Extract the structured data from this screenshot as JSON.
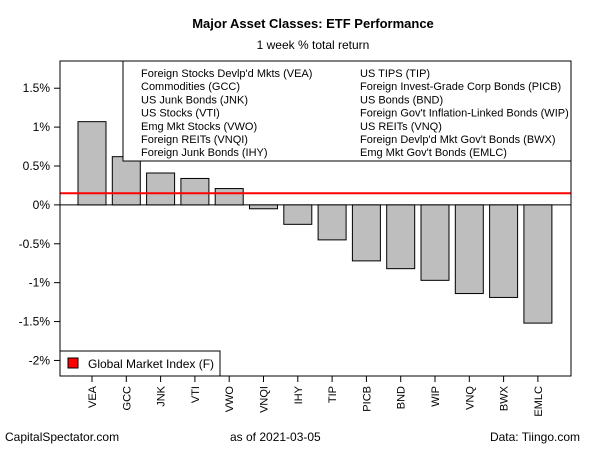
{
  "chart_data": {
    "type": "bar",
    "title": "Major Asset Classes: ETF Performance",
    "subtitle": "1 week % total return",
    "categories": [
      "VEA",
      "GCC",
      "JNK",
      "VTI",
      "VWO",
      "VNQI",
      "IHY",
      "TIP",
      "PICB",
      "BND",
      "WIP",
      "VNQ",
      "BWX",
      "EMLC"
    ],
    "values": [
      1.07,
      0.62,
      0.41,
      0.34,
      0.21,
      -0.05,
      -0.25,
      -0.45,
      -0.72,
      -0.82,
      -0.97,
      -1.14,
      -1.19,
      -1.52
    ],
    "ylim": [
      -2.2,
      1.85
    ],
    "yticks": [
      1.5,
      1.0,
      0.5,
      0,
      -0.5,
      -1.0,
      -1.5,
      -2.0
    ],
    "ytick_labels": [
      "1.5%",
      "1%",
      "0.5%",
      "0%",
      "-0.5%",
      "-1%",
      "-1.5%",
      "-2%"
    ],
    "reference_line": {
      "label": "Global Market Index (F)",
      "value": 0.15,
      "color": "#ff0000"
    },
    "bar_color": "#bebebe",
    "legend_left": [
      "Foreign Stocks Devlp'd Mkts (VEA)",
      "Commodities (GCC)",
      "US Junk Bonds (JNK)",
      "US Stocks (VTI)",
      "Emg Mkt Stocks (VWO)",
      "Foreign REITs (VNQI)",
      "Foreign Junk Bonds (IHY)"
    ],
    "legend_right": [
      "US TIPS (TIP)",
      "Foreign Invest-Grade Corp Bonds (PICB)",
      "US Bonds (BND)",
      "Foreign Gov't Inflation-Linked Bonds (WIP)",
      "US REITs (VNQ)",
      "Foreign Devlp'd Mkt Gov't Bonds (BWX)",
      "Emg Mkt Gov't Bonds (EMLC)"
    ]
  },
  "footer": {
    "left": "CapitalSpectator.com",
    "center": "as of   2021-03-05",
    "right": "Data: Tiingo.com"
  }
}
